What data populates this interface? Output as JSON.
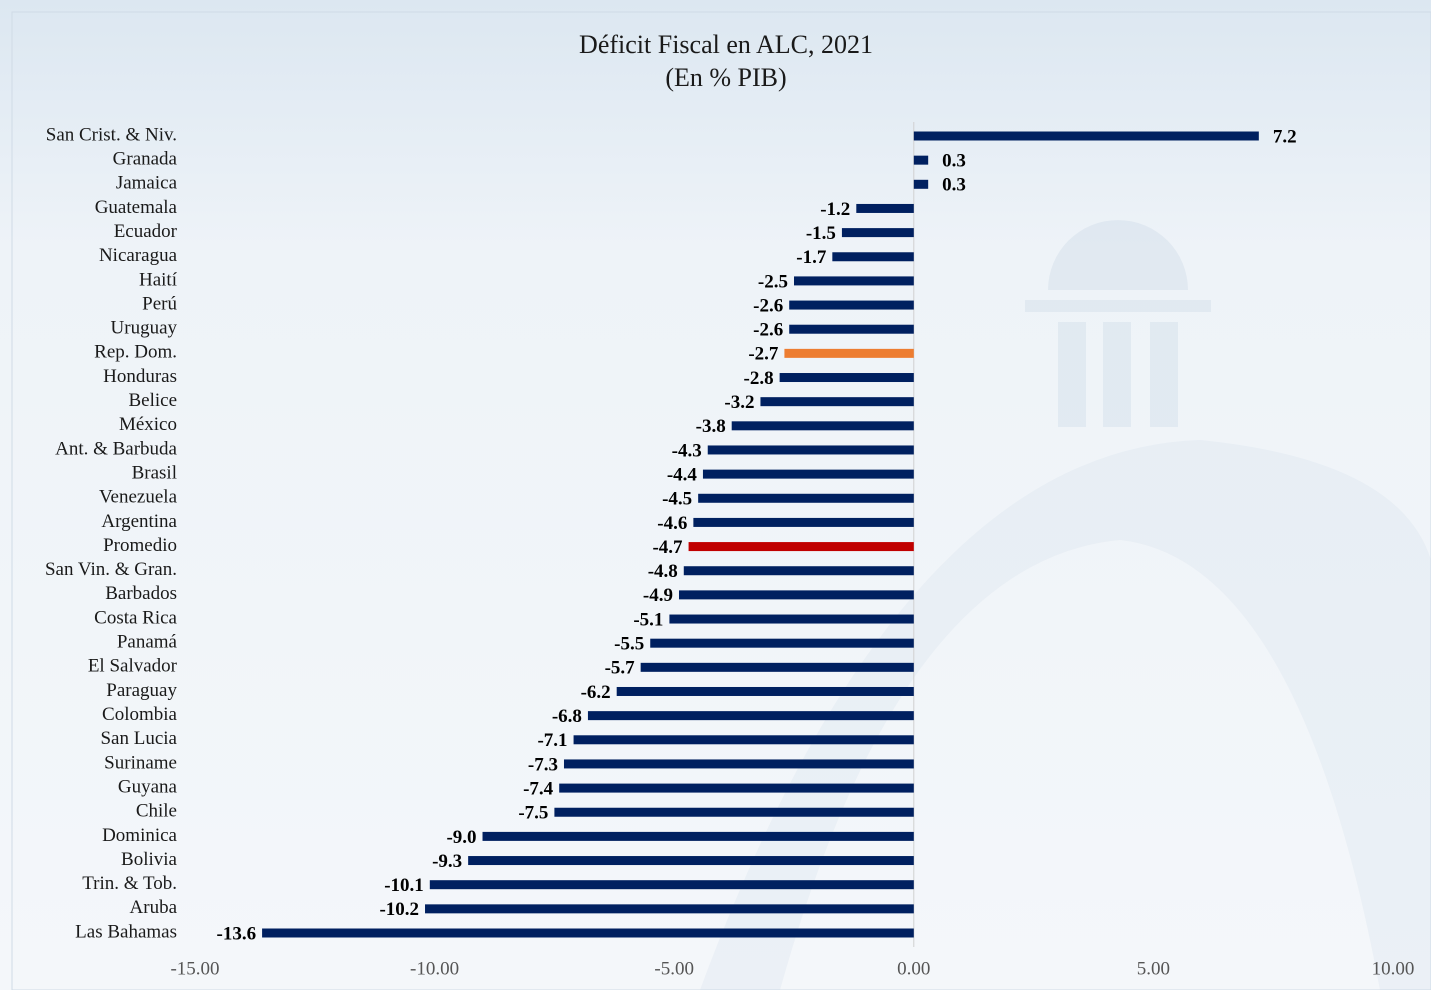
{
  "chart_data": {
    "type": "bar",
    "orientation": "horizontal",
    "title": "Déficit Fiscal en ALC, 2021",
    "subtitle": "(En % PIB)",
    "categories": [
      "San Crist. & Niv.",
      "Granada",
      "Jamaica",
      "Guatemala",
      "Ecuador",
      "Nicaragua",
      "Haití",
      "Perú",
      "Uruguay",
      "Rep. Dom.",
      "Honduras",
      "Belice",
      "México",
      "Ant. & Barbuda",
      "Brasil",
      "Venezuela",
      "Argentina",
      "Promedio",
      "San Vin. & Gran.",
      "Barbados",
      "Costa Rica",
      "Panamá",
      "El Salvador",
      "Paraguay",
      "Colombia",
      "San Lucia",
      "Suriname",
      "Guyana",
      "Chile",
      "Dominica",
      "Bolivia",
      "Trin. & Tob.",
      "Aruba",
      "Las Bahamas"
    ],
    "values": [
      7.2,
      0.3,
      0.3,
      -1.2,
      -1.5,
      -1.7,
      -2.5,
      -2.6,
      -2.6,
      -2.7,
      -2.8,
      -3.2,
      -3.8,
      -4.3,
      -4.4,
      -4.5,
      -4.6,
      -4.7,
      -4.8,
      -4.9,
      -5.1,
      -5.5,
      -5.7,
      -6.2,
      -6.8,
      -7.1,
      -7.3,
      -7.4,
      -7.5,
      -9.0,
      -9.3,
      -10.1,
      -10.2,
      -13.6
    ],
    "value_labels": [
      "7.2",
      "0.3",
      "0.3",
      "-1.2",
      "-1.5",
      "-1.7",
      "-2.5",
      "-2.6",
      "-2.6",
      "-2.7",
      "-2.8",
      "-3.2",
      "-3.8",
      "-4.3",
      "-4.4",
      "-4.5",
      "-4.6",
      "-4.7",
      "-4.8",
      "-4.9",
      "-5.1",
      "-5.5",
      "-5.7",
      "-6.2",
      "-6.8",
      "-7.1",
      "-7.3",
      "-7.4",
      "-7.5",
      "-9.0",
      "-9.3",
      "-10.1",
      "-10.2",
      "-13.6"
    ],
    "color": "#002060",
    "colors": [
      "#002060",
      "#002060",
      "#002060",
      "#002060",
      "#002060",
      "#002060",
      "#002060",
      "#002060",
      "#002060",
      "#ed7d31",
      "#002060",
      "#002060",
      "#002060",
      "#002060",
      "#002060",
      "#002060",
      "#002060",
      "#c00000",
      "#002060",
      "#002060",
      "#002060",
      "#002060",
      "#002060",
      "#002060",
      "#002060",
      "#002060",
      "#002060",
      "#002060",
      "#002060",
      "#002060",
      "#002060",
      "#002060",
      "#002060",
      "#002060"
    ],
    "xlim": [
      -15,
      10
    ],
    "xticks": [
      {
        "value": -15,
        "label": "-15.00"
      },
      {
        "value": -10,
        "label": "-10.00"
      },
      {
        "value": -5,
        "label": "-5.00"
      },
      {
        "value": 0,
        "label": "0.00"
      },
      {
        "value": 5,
        "label": "5.00"
      },
      {
        "value": 10,
        "label": "10.00"
      }
    ],
    "grid": false
  }
}
